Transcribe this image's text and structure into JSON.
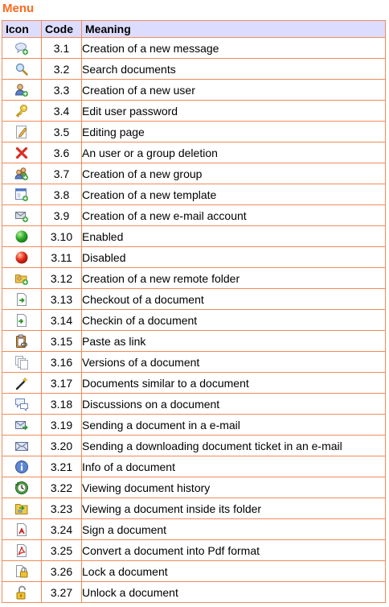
{
  "title": "Menu",
  "columns": {
    "icon": "Icon",
    "code": "Code",
    "meaning": "Meaning"
  },
  "rows": [
    {
      "code": "3.1",
      "meaning": "Creation of  a new message",
      "icon": "new-message-icon"
    },
    {
      "code": "3.2",
      "meaning": "Search documents",
      "icon": "search-icon"
    },
    {
      "code": "3.3",
      "meaning": "Creation of a new user",
      "icon": "add-user-icon"
    },
    {
      "code": "3.4",
      "meaning": "Edit user password",
      "icon": "key-icon"
    },
    {
      "code": "3.5",
      "meaning": "Editing page",
      "icon": "edit-page-icon"
    },
    {
      "code": "3.6",
      "meaning": "An user or a group deletion",
      "icon": "delete-icon"
    },
    {
      "code": "3.7",
      "meaning": "Creation of a new group",
      "icon": "add-group-icon"
    },
    {
      "code": "3.8",
      "meaning": "Creation of a new template",
      "icon": "new-template-icon"
    },
    {
      "code": "3.9",
      "meaning": "Creation of a new e-mail account",
      "icon": "new-email-account-icon"
    },
    {
      "code": "3.10",
      "meaning": "Enabled",
      "icon": "green-dot-icon"
    },
    {
      "code": "3.11",
      "meaning": "Disabled",
      "icon": "red-dot-icon"
    },
    {
      "code": "3.12",
      "meaning": "Creation of a new remote folder",
      "icon": "new-remote-folder-icon"
    },
    {
      "code": "3.13",
      "meaning": "Checkout of a document",
      "icon": "checkout-icon"
    },
    {
      "code": "3.14",
      "meaning": "Checkin of a document",
      "icon": "checkin-icon"
    },
    {
      "code": "3.15",
      "meaning": "Paste as link",
      "icon": "paste-link-icon"
    },
    {
      "code": "3.16",
      "meaning": "Versions of a document",
      "icon": "versions-icon"
    },
    {
      "code": "3.17",
      "meaning": "Documents similar to a document",
      "icon": "magic-wand-icon"
    },
    {
      "code": "3.18",
      "meaning": "Discussions on a document",
      "icon": "discussion-icon"
    },
    {
      "code": "3.19",
      "meaning": "Sending a document in a e-mail",
      "icon": "send-email-icon"
    },
    {
      "code": "3.20",
      "meaning": "Sending a downloading document ticket in an e-mail",
      "icon": "email-ticket-icon"
    },
    {
      "code": "3.21",
      "meaning": "Info of a document",
      "icon": "info-icon"
    },
    {
      "code": "3.22",
      "meaning": "Viewing document history",
      "icon": "history-icon"
    },
    {
      "code": "3.23",
      "meaning": "Viewing a document inside its folder",
      "icon": "folder-view-icon"
    },
    {
      "code": "3.24",
      "meaning": "Sign a document",
      "icon": "sign-icon"
    },
    {
      "code": "3.25",
      "meaning": "Convert a document into Pdf format",
      "icon": "pdf-icon"
    },
    {
      "code": "3.26",
      "meaning": "Lock a document",
      "icon": "lock-icon"
    },
    {
      "code": "3.27",
      "meaning": "Unlock a document",
      "icon": "unlock-icon"
    }
  ],
  "colors": {
    "title": "#ff6a1c",
    "header_bg": "#dcdcff",
    "border": "#f08b5a"
  }
}
